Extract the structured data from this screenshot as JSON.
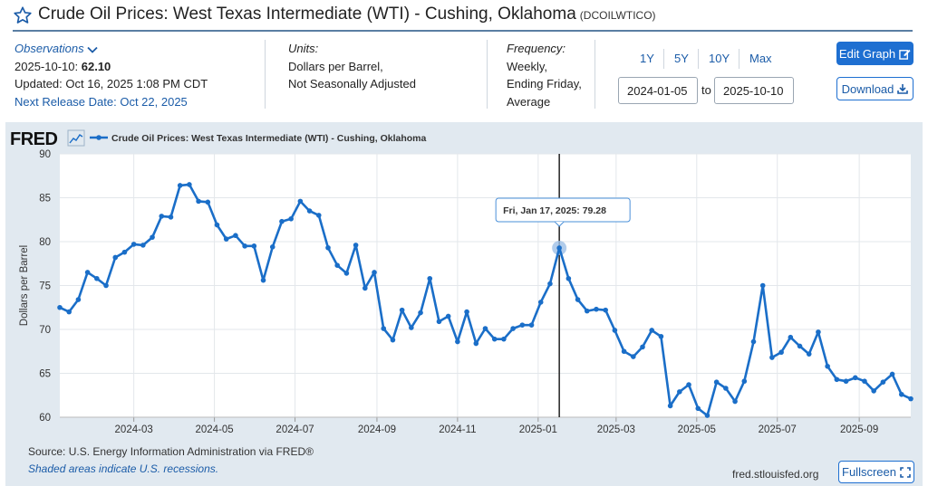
{
  "header": {
    "title": "Crude Oil Prices: West Texas Intermediate (WTI) - Cushing, Oklahoma",
    "series_id": "(DCOILWTICO)"
  },
  "observations": {
    "label": "Observations",
    "date_label": "2025-10-10:",
    "value": "62.10",
    "updated": "Updated: Oct 16, 2025 1:08 PM CDT",
    "next_release": "Next Release Date: Oct 22, 2025"
  },
  "units": {
    "label": "Units:",
    "line1": "Dollars per Barrel,",
    "line2": "Not Seasonally Adjusted"
  },
  "frequency": {
    "label": "Frequency:",
    "line1": "Weekly,",
    "line2": "Ending Friday,",
    "line3": "Average"
  },
  "range": {
    "links": [
      "1Y",
      "5Y",
      "10Y",
      "Max"
    ],
    "start": "2024-01-05",
    "to_label": "to",
    "end": "2025-10-10"
  },
  "buttons": {
    "edit": "Edit Graph",
    "download": "Download",
    "fullscreen": "Fullscreen"
  },
  "fred_logo": "FRED",
  "footer": {
    "source": "Source: U.S. Energy Information Administration via FRED®",
    "recessions": "Shaded areas indicate U.S. recessions.",
    "site": "fred.stlouisfed.org"
  },
  "tooltip": {
    "date": "Fri, Jan 17, 2025:",
    "value": "79.28"
  },
  "colors": {
    "series": "#1a6ec8",
    "panel": "#e1e9f0",
    "button": "#1e6fd1",
    "link": "#1b5ca8"
  },
  "chart_data": {
    "type": "line",
    "title": "",
    "legend": "Crude Oil Prices: West Texas Intermediate (WTI) - Cushing, Oklahoma",
    "ylabel": "Dollars per Barrel",
    "xlabel": "",
    "ylim": [
      60,
      90
    ],
    "xlim": [
      "2024-01-05",
      "2025-10-10"
    ],
    "yticks": [
      60,
      65,
      70,
      75,
      80,
      85,
      90
    ],
    "xticks": [
      "2024-03",
      "2024-05",
      "2024-07",
      "2024-09",
      "2024-11",
      "2025-01",
      "2025-03",
      "2025-05",
      "2025-07",
      "2025-09"
    ],
    "x_start": "2024-01-05",
    "x_step_days": 7,
    "values": [
      72.5,
      72.0,
      73.4,
      76.5,
      75.8,
      75.0,
      78.2,
      78.8,
      79.7,
      79.6,
      80.5,
      82.9,
      82.8,
      86.4,
      86.5,
      84.6,
      84.5,
      81.9,
      80.3,
      80.7,
      79.5,
      79.5,
      75.6,
      79.4,
      82.3,
      82.6,
      84.6,
      83.5,
      83.0,
      79.3,
      77.3,
      76.4,
      79.6,
      74.7,
      76.5,
      70.1,
      68.8,
      72.2,
      70.2,
      71.9,
      75.8,
      70.9,
      71.5,
      68.6,
      72.0,
      68.4,
      70.1,
      68.9,
      68.9,
      70.1,
      70.5,
      70.5,
      73.1,
      75.2,
      79.28,
      75.8,
      73.4,
      72.1,
      72.3,
      72.2,
      69.9,
      67.5,
      66.9,
      68.0,
      69.9,
      69.2,
      61.3,
      62.9,
      63.7,
      61.0,
      60.2,
      64.0,
      63.3,
      61.8,
      64.1,
      68.6,
      75.0,
      66.8,
      67.4,
      69.1,
      68.1,
      67.2,
      69.7,
      65.8,
      64.3,
      64.1,
      64.5,
      64.1,
      63.0,
      64.0,
      64.9,
      62.6,
      62.1
    ],
    "highlight": {
      "date": "2025-01-17",
      "value": 79.28
    },
    "grid": true
  }
}
